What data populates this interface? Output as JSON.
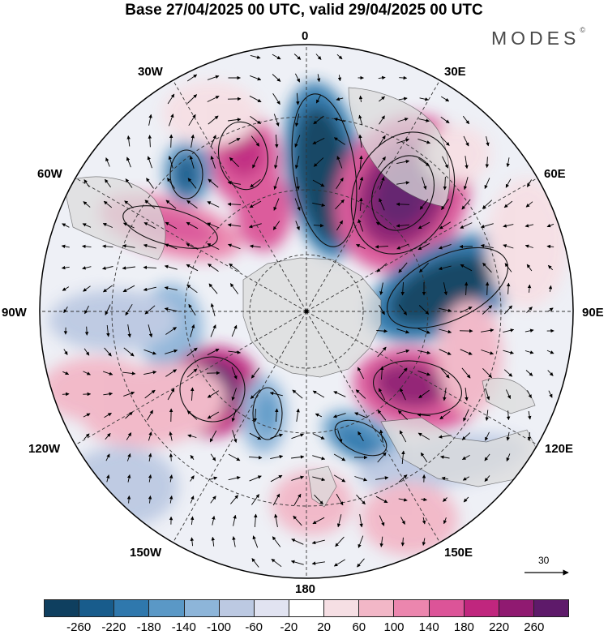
{
  "title": "Base 27/04/2025 00 UTC, valid 29/04/2025 00 UTC",
  "brand": {
    "name": "MODES",
    "mark": "©"
  },
  "longitude_labels": {
    "lon_0": "0",
    "lon_30e": "30E",
    "lon_60e": "60E",
    "lon_90e": "90E",
    "lon_120e": "120E",
    "lon_150e": "150E",
    "lon_180": "180",
    "lon_150w": "150W",
    "lon_120w": "120W",
    "lon_90w": "90W",
    "lon_60w": "60W",
    "lon_30w": "30W"
  },
  "reference_vector": {
    "label": "30"
  },
  "colorbar": {
    "colors": [
      "#0f3f5f",
      "#185c8c",
      "#2f78ad",
      "#5a98c6",
      "#8db5d9",
      "#bcc9e2",
      "#e1e3f1",
      "#ffffff",
      "#f6dfe4",
      "#f2b7c7",
      "#ec86ae",
      "#dc5498",
      "#c0267e",
      "#901a71",
      "#5e1a6a"
    ],
    "labels": [
      "-260",
      "-220",
      "-180",
      "-140",
      "-100",
      "-60",
      "-20",
      "20",
      "60",
      "100",
      "140",
      "180",
      "220",
      "260"
    ]
  },
  "map_colors": {
    "land": "#dcdcdc",
    "grid": "#333333",
    "coast": "#555555"
  }
}
